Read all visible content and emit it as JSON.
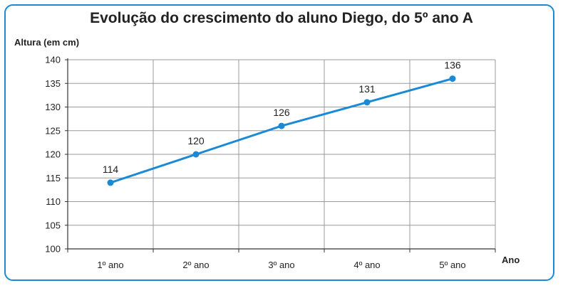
{
  "chart_data": {
    "type": "line",
    "title": "Evolução do crescimento do aluno Diego, do 5º ano A",
    "ylabel": "Altura (em cm)",
    "xlabel": "Ano",
    "categories": [
      "1º ano",
      "2º ano",
      "3º ano",
      "4º ano",
      "5º ano"
    ],
    "values": [
      114,
      120,
      126,
      131,
      136
    ],
    "data_labels": [
      "114",
      "120",
      "126",
      "131",
      "136"
    ],
    "ylim": [
      100,
      140
    ],
    "yticks": [
      100,
      105,
      110,
      115,
      120,
      125,
      130,
      135,
      140
    ],
    "grid": true,
    "line_color": "#1a8ad4",
    "frame_color": "#1a8ad4"
  }
}
